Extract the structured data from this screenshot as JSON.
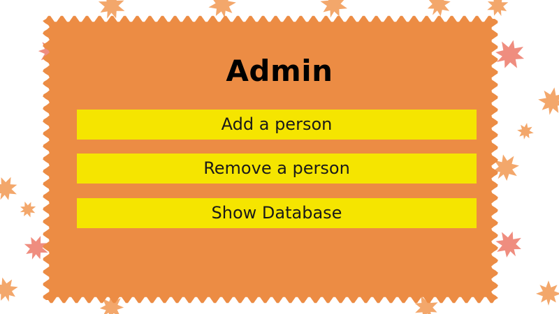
{
  "colors": {
    "panel": "#ec8c44",
    "button": "#f5e500",
    "leaf_orange": "#f3a76b",
    "leaf_pink": "#ef8d7f"
  },
  "icons": [
    "maple-leaf-icon"
  ],
  "admin": {
    "title": "Admin",
    "buttons": {
      "add_person": "Add a person",
      "remove_person": "Remove a person",
      "show_database": "Show Database"
    }
  }
}
